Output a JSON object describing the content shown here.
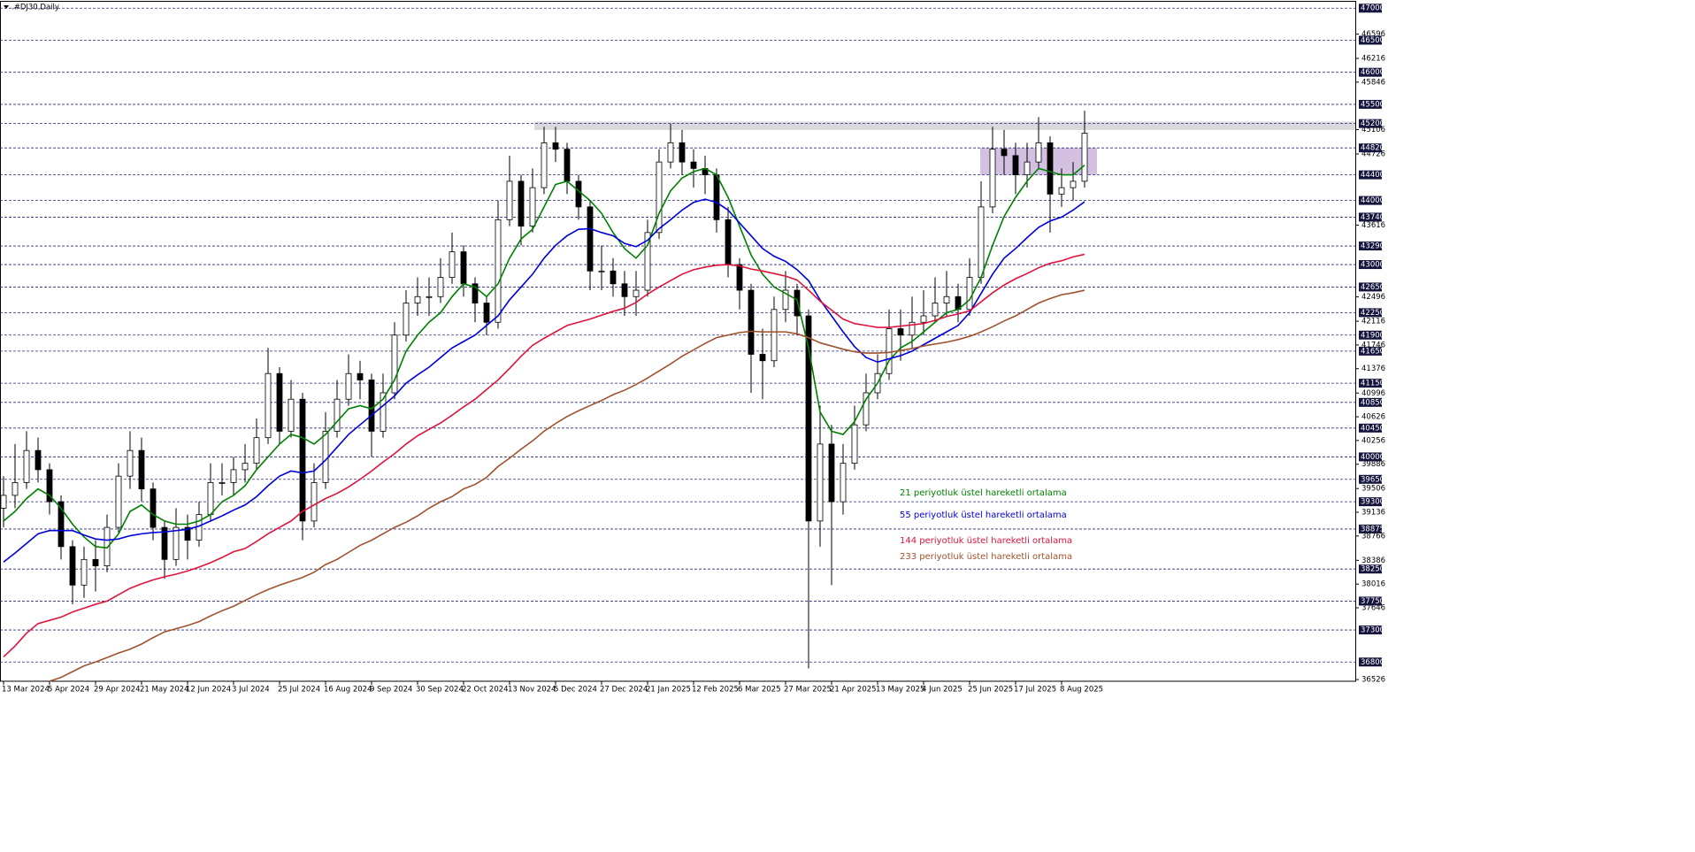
{
  "chart_data": {
    "type": "candlestick",
    "title": ".#DJ30,Daily",
    "categories": [
      "13 Mar 2024",
      null,
      null,
      null,
      "5 Apr 2024",
      null,
      null,
      null,
      "29 Apr 2024",
      null,
      null,
      null,
      "21 May 2024",
      null,
      null,
      null,
      "12 Jun 2024",
      null,
      null,
      null,
      "3 Jul 2024",
      null,
      null,
      null,
      "25 Jul 2024",
      null,
      null,
      null,
      "16 Aug 2024",
      null,
      null,
      null,
      "9 Sep 2024",
      null,
      null,
      null,
      "30 Sep 2024",
      null,
      null,
      null,
      "22 Oct 2024",
      null,
      null,
      null,
      "13 Nov 2024",
      null,
      null,
      null,
      "5 Dec 2024",
      null,
      null,
      null,
      "27 Dec 2024",
      null,
      null,
      null,
      "21 Jan 2025",
      null,
      null,
      null,
      "12 Feb 2025",
      null,
      null,
      null,
      "6 Mar 2025",
      null,
      null,
      null,
      "27 Mar 2025",
      null,
      null,
      null,
      "21 Apr 2025",
      null,
      null,
      null,
      "13 May 2025",
      null,
      null,
      null,
      "4 Jun 2025",
      null,
      null,
      null,
      "25 Jun 2025",
      null,
      null,
      null,
      "17 Jul 2025",
      null,
      null,
      null,
      "8 Aug 2025",
      null,
      null
    ],
    "open": [
      39200,
      39400,
      39600,
      40100,
      39800,
      39300,
      38600,
      38000,
      38400,
      38300,
      38900,
      39700,
      40100,
      39500,
      38900,
      38400,
      38900,
      38700,
      39100,
      39600,
      39600,
      39800,
      39900,
      40300,
      41300,
      40400,
      40900,
      39000,
      39600,
      40400,
      40900,
      41300,
      41200,
      40400,
      41000,
      41900,
      42400,
      42500,
      42500,
      42800,
      43200,
      42700,
      42400,
      42100,
      43700,
      44300,
      43600,
      44200,
      44900,
      44800,
      44300,
      43900,
      42900,
      42900,
      42700,
      42500,
      42600,
      43500,
      44600,
      44900,
      44600,
      44500,
      44400,
      43700,
      43000,
      42600,
      41600,
      41500,
      42300,
      42600,
      42200,
      39000,
      40200,
      39300,
      39900,
      40500,
      41000,
      41300,
      42000,
      41900,
      42100,
      42200,
      42400,
      42500,
      42300,
      42800,
      43900,
      44800,
      44700,
      44400,
      44600,
      44900,
      44100,
      44200,
      44300
    ],
    "high": [
      39700,
      40200,
      40400,
      40300,
      39900,
      39400,
      38700,
      38600,
      38700,
      39100,
      39900,
      40400,
      40300,
      39600,
      39000,
      39200,
      39100,
      39300,
      39900,
      39900,
      40000,
      40200,
      40600,
      41700,
      41400,
      41200,
      41000,
      39900,
      40700,
      41200,
      41600,
      41500,
      41300,
      41300,
      42100,
      42600,
      42800,
      42800,
      43100,
      43500,
      43300,
      42800,
      42500,
      44000,
      44700,
      44400,
      44500,
      45150,
      45150,
      44900,
      44400,
      44000,
      43300,
      43100,
      42900,
      42900,
      43700,
      44800,
      45200,
      45100,
      44800,
      44700,
      44500,
      43900,
      43100,
      42700,
      42000,
      42500,
      42900,
      42700,
      42300,
      40800,
      40500,
      40200,
      40800,
      41300,
      41600,
      42300,
      42300,
      42500,
      42600,
      42800,
      42900,
      42700,
      43100,
      44300,
      45150,
      45100,
      44900,
      44900,
      45300,
      45000,
      44500,
      44600,
      45400
    ],
    "low": [
      38900,
      39200,
      39500,
      39600,
      39100,
      38400,
      37700,
      37800,
      37900,
      38200,
      38800,
      39500,
      39300,
      38700,
      38100,
      38300,
      38400,
      38600,
      39000,
      39400,
      39400,
      39600,
      39800,
      40200,
      40200,
      40300,
      38700,
      38900,
      39500,
      40300,
      40800,
      40900,
      40000,
      40300,
      40900,
      41800,
      42200,
      42200,
      42400,
      42700,
      42500,
      42100,
      41900,
      42000,
      43600,
      43300,
      43500,
      44100,
      44600,
      44100,
      43700,
      42600,
      42600,
      42500,
      42200,
      42200,
      42500,
      43400,
      44500,
      44400,
      44200,
      44100,
      43500,
      42800,
      42300,
      41000,
      40900,
      41400,
      42100,
      41900,
      36700,
      38600,
      38000,
      39100,
      39800,
      40400,
      40900,
      41200,
      41500,
      41700,
      41900,
      42100,
      42200,
      42100,
      42200,
      42700,
      43800,
      44400,
      44100,
      44200,
      44500,
      43500,
      43900,
      44000,
      44200
    ],
    "close": [
      39400,
      39600,
      40100,
      39800,
      39300,
      38600,
      38000,
      38400,
      38300,
      38900,
      39700,
      40100,
      39500,
      38900,
      38400,
      38900,
      38700,
      39100,
      39600,
      39600,
      39800,
      39900,
      40300,
      41300,
      40400,
      40900,
      39000,
      39600,
      40400,
      40900,
      41300,
      41200,
      40400,
      41000,
      41900,
      42400,
      42500,
      42500,
      42800,
      43200,
      42700,
      42400,
      42100,
      43700,
      44300,
      43600,
      44200,
      44900,
      44800,
      44300,
      43900,
      42900,
      42900,
      42700,
      42500,
      42600,
      43500,
      44600,
      44900,
      44600,
      44500,
      44400,
      43700,
      43000,
      42600,
      41600,
      41500,
      42300,
      42600,
      42200,
      39000,
      40200,
      39300,
      39900,
      40500,
      41000,
      41300,
      42000,
      41900,
      42100,
      42200,
      42400,
      42500,
      42300,
      42800,
      43900,
      44800,
      44700,
      44400,
      44600,
      44900,
      44100,
      44200,
      44300,
      45050
    ],
    "series": [
      {
        "name": "21 periyotluk üstel hareketli ortalama",
        "color": "#008000",
        "values": [
          39000,
          39150,
          39350,
          39500,
          39400,
          39200,
          38950,
          38750,
          38600,
          38580,
          38800,
          39150,
          39250,
          39100,
          39000,
          38950,
          38950,
          39000,
          39100,
          39300,
          39400,
          39550,
          39800,
          40000,
          40200,
          40350,
          40300,
          40200,
          40350,
          40550,
          40750,
          40800,
          40750,
          40900,
          41200,
          41650,
          41900,
          42100,
          42250,
          42500,
          42700,
          42650,
          42500,
          42700,
          43100,
          43400,
          43550,
          43900,
          44250,
          44300,
          44150,
          44000,
          43800,
          43500,
          43250,
          43100,
          43300,
          43800,
          44150,
          44350,
          44450,
          44500,
          44400,
          44050,
          43600,
          43150,
          42850,
          42650,
          42550,
          42450,
          41700,
          40700,
          40400,
          40350,
          40550,
          40900,
          41150,
          41500,
          41700,
          41800,
          41950,
          42100,
          42250,
          42300,
          42450,
          42800,
          43300,
          43750,
          44050,
          44300,
          44500,
          44450,
          44400,
          44400,
          44550
        ]
      },
      {
        "name": "55 periyotluk üstel hareketli ortalama",
        "color": "#0000dc",
        "values": [
          38360,
          38500,
          38650,
          38800,
          38850,
          38850,
          38850,
          38780,
          38720,
          38700,
          38720,
          38770,
          38800,
          38820,
          38830,
          38850,
          38870,
          38920,
          39000,
          39080,
          39170,
          39250,
          39380,
          39550,
          39700,
          39780,
          39750,
          39780,
          39950,
          40150,
          40350,
          40500,
          40650,
          40800,
          40950,
          41150,
          41280,
          41400,
          41550,
          41700,
          41800,
          41900,
          42050,
          42200,
          42450,
          42650,
          42850,
          43100,
          43300,
          43450,
          43550,
          43560,
          43500,
          43450,
          43330,
          43280,
          43380,
          43560,
          43700,
          43850,
          43970,
          44020,
          43970,
          43850,
          43650,
          43450,
          43250,
          43130,
          43050,
          42920,
          42750,
          42450,
          42200,
          41950,
          41720,
          41550,
          41480,
          41530,
          41580,
          41650,
          41750,
          41850,
          41950,
          42050,
          42250,
          42550,
          42850,
          43100,
          43250,
          43420,
          43580,
          43680,
          43740,
          43850,
          43980
        ]
      },
      {
        "name": "144 periyotluk üstel hareketli ortalama",
        "color": "#dc143c",
        "values": [
          36880,
          37050,
          37250,
          37400,
          37450,
          37500,
          37580,
          37640,
          37700,
          37750,
          37850,
          37950,
          38020,
          38080,
          38130,
          38170,
          38220,
          38280,
          38350,
          38430,
          38520,
          38570,
          38680,
          38800,
          38900,
          39000,
          39150,
          39250,
          39350,
          39430,
          39530,
          39650,
          39780,
          39920,
          40050,
          40200,
          40330,
          40430,
          40530,
          40650,
          40780,
          40900,
          41050,
          41200,
          41380,
          41570,
          41740,
          41850,
          41950,
          42050,
          42100,
          42150,
          42210,
          42270,
          42320,
          42410,
          42540,
          42650,
          42750,
          42850,
          42920,
          42960,
          42990,
          43000,
          42980,
          42930,
          42900,
          42860,
          42820,
          42760,
          42600,
          42430,
          42290,
          42150,
          42080,
          42050,
          42020,
          42020,
          42040,
          42060,
          42080,
          42130,
          42190,
          42230,
          42280,
          42420,
          42560,
          42680,
          42780,
          42860,
          42950,
          43020,
          43060,
          43120,
          43160
        ]
      },
      {
        "name": "233 periyotluk üstel hareketli ortalama",
        "color": "#a0522d",
        "values": [
          null,
          null,
          null,
          null,
          36500,
          36560,
          36650,
          36740,
          36800,
          36870,
          36940,
          37000,
          37080,
          37180,
          37270,
          37320,
          37370,
          37430,
          37520,
          37600,
          37670,
          37760,
          37850,
          37930,
          38000,
          38060,
          38120,
          38200,
          38320,
          38400,
          38510,
          38620,
          38700,
          38800,
          38900,
          38980,
          39080,
          39200,
          39300,
          39380,
          39500,
          39570,
          39680,
          39850,
          39980,
          40120,
          40250,
          40400,
          40520,
          40630,
          40720,
          40800,
          40880,
          40970,
          41040,
          41130,
          41230,
          41340,
          41450,
          41570,
          41670,
          41770,
          41860,
          41900,
          41940,
          41960,
          41950,
          41950,
          41950,
          41920,
          41860,
          41780,
          41730,
          41680,
          41640,
          41620,
          41620,
          41630,
          41660,
          41690,
          41730,
          41760,
          41790,
          41830,
          41880,
          41950,
          42030,
          42120,
          42200,
          42300,
          42400,
          42470,
          42530,
          42560,
          42600
        ]
      }
    ],
    "ylim": [
      36500,
      47100
    ],
    "yticks": [
      36526,
      37646,
      38016,
      38386,
      38766,
      39136,
      39506,
      39886,
      40256,
      40626,
      40996,
      41376,
      41746,
      42116,
      42496,
      43616,
      44726,
      45106,
      45846,
      46216,
      46596
    ],
    "levels": [
      36800,
      37300,
      37750,
      38250,
      38875,
      39300,
      39650,
      40000,
      40450,
      40850,
      41150,
      41650,
      41900,
      42250,
      42650,
      43000,
      43290,
      43740,
      44000,
      44400,
      44820,
      45200,
      45500,
      46000,
      46500,
      47000
    ],
    "zones": [
      {
        "low": 45100,
        "high": 45230,
        "color": "#d4d4d8"
      },
      {
        "low": 44400,
        "high": 44820,
        "color": "#cdb6dc"
      }
    ],
    "grid": true
  }
}
